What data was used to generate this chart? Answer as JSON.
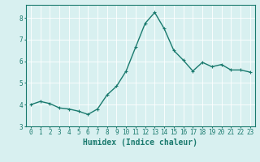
{
  "x": [
    0,
    1,
    2,
    3,
    4,
    5,
    6,
    7,
    8,
    9,
    10,
    11,
    12,
    13,
    14,
    15,
    16,
    17,
    18,
    19,
    20,
    21,
    22,
    23
  ],
  "y": [
    4.0,
    4.15,
    4.05,
    3.85,
    3.8,
    3.7,
    3.55,
    3.8,
    4.45,
    4.85,
    5.55,
    6.65,
    7.75,
    8.25,
    7.5,
    6.5,
    6.05,
    5.55,
    5.95,
    5.75,
    5.85,
    5.6,
    5.6,
    5.5
  ],
  "line_color": "#1a7a6e",
  "marker": "+",
  "marker_size": 3,
  "line_width": 1.0,
  "bg_color": "#d8f0f0",
  "grid_color": "#ffffff",
  "xlabel": "Humidex (Indice chaleur)",
  "xlim": [
    -0.5,
    23.5
  ],
  "ylim": [
    3.0,
    8.6
  ],
  "yticks": [
    3,
    4,
    5,
    6,
    7,
    8
  ],
  "xticks": [
    0,
    1,
    2,
    3,
    4,
    5,
    6,
    7,
    8,
    9,
    10,
    11,
    12,
    13,
    14,
    15,
    16,
    17,
    18,
    19,
    20,
    21,
    22,
    23
  ],
  "tick_label_fontsize": 5.5,
  "xlabel_fontsize": 7.0,
  "axis_color": "#1a7a6e",
  "grid_linewidth": 0.6
}
